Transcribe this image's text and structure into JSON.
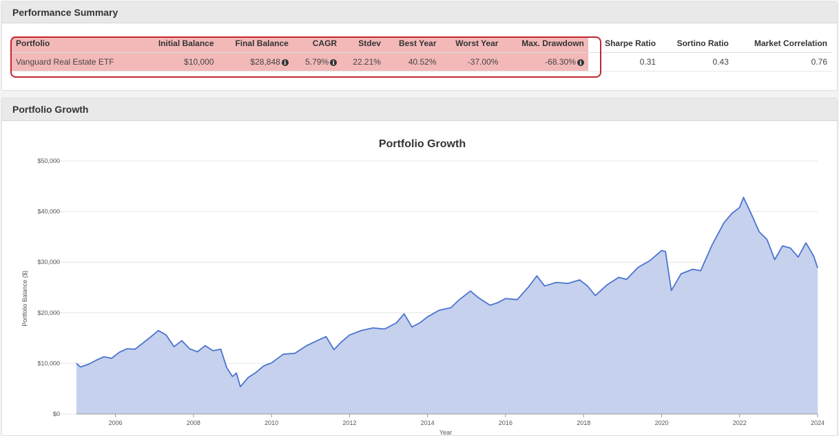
{
  "summary": {
    "title": "Performance Summary",
    "columns": [
      "Portfolio",
      "Initial Balance",
      "Final Balance",
      "CAGR",
      "Stdev",
      "Best Year",
      "Worst Year",
      "Max. Drawdown",
      "Sharpe Ratio",
      "Sortino Ratio",
      "Market Correlation"
    ],
    "row": {
      "portfolio": "Vanguard Real Estate ETF",
      "initial_balance": "$10,000",
      "final_balance": "$28,848",
      "cagr": "5.79%",
      "stdev": "22.21%",
      "best_year": "40.52%",
      "worst_year": "-37.00%",
      "max_drawdown": "-68.30%",
      "sharpe": "0.31",
      "sortino": "0.43",
      "correlation": "0.76"
    },
    "info_icon": "i",
    "highlight_color": "#c0262d"
  },
  "growth": {
    "panel_title": "Portfolio Growth"
  },
  "chart_data": {
    "type": "area",
    "title": "Portfolio Growth",
    "xlabel": "Year",
    "ylabel": "Portfolio Balance ($)",
    "ylim": [
      0,
      50000
    ],
    "xlim": [
      2005.0,
      2024.0
    ],
    "y_ticks": [
      "$0",
      "$10,000",
      "$20,000",
      "$30,000",
      "$40,000",
      "$50,000"
    ],
    "x_ticks": [
      "2006",
      "2008",
      "2010",
      "2012",
      "2014",
      "2016",
      "2018",
      "2020",
      "2022",
      "2024"
    ],
    "grid": true,
    "series": [
      {
        "name": "Vanguard Real Estate ETF",
        "color": "#4a74cf",
        "fill": "#c6d1ee",
        "x": [
          2005.0,
          2005.1,
          2005.3,
          2005.5,
          2005.7,
          2005.9,
          2006.1,
          2006.3,
          2006.5,
          2006.7,
          2006.9,
          2007.1,
          2007.3,
          2007.5,
          2007.7,
          2007.9,
          2008.1,
          2008.3,
          2008.5,
          2008.7,
          2008.85,
          2009.0,
          2009.1,
          2009.2,
          2009.4,
          2009.6,
          2009.8,
          2010.0,
          2010.3,
          2010.6,
          2010.9,
          2011.2,
          2011.4,
          2011.6,
          2011.8,
          2012.0,
          2012.3,
          2012.6,
          2012.9,
          2013.2,
          2013.4,
          2013.6,
          2013.8,
          2014.0,
          2014.3,
          2014.6,
          2014.8,
          2015.1,
          2015.3,
          2015.6,
          2015.8,
          2016.0,
          2016.3,
          2016.6,
          2016.8,
          2017.0,
          2017.3,
          2017.6,
          2017.9,
          2018.1,
          2018.3,
          2018.6,
          2018.9,
          2019.1,
          2019.4,
          2019.7,
          2020.0,
          2020.1,
          2020.25,
          2020.5,
          2020.8,
          2021.0,
          2021.3,
          2021.6,
          2021.8,
          2022.0,
          2022.1,
          2022.3,
          2022.5,
          2022.7,
          2022.9,
          2023.1,
          2023.3,
          2023.5,
          2023.7,
          2023.9,
          2024.0
        ],
        "values": [
          10000,
          9300,
          9800,
          10600,
          11300,
          11000,
          12200,
          12900,
          12800,
          14000,
          15200,
          16500,
          15600,
          13300,
          14500,
          12900,
          12300,
          13500,
          12500,
          12800,
          9200,
          7400,
          8100,
          5400,
          7200,
          8200,
          9500,
          10100,
          11800,
          12000,
          13500,
          14600,
          15300,
          12700,
          14300,
          15600,
          16500,
          17000,
          16800,
          18000,
          19800,
          17200,
          18000,
          19200,
          20500,
          21000,
          22500,
          24300,
          23000,
          21500,
          22000,
          22800,
          22600,
          25200,
          27300,
          25300,
          26000,
          25800,
          26500,
          25300,
          23400,
          25500,
          27000,
          26600,
          29000,
          30300,
          32300,
          32100,
          24400,
          27700,
          28600,
          28300,
          33500,
          37800,
          39600,
          40800,
          42800,
          39500,
          36000,
          34500,
          30500,
          33200,
          32800,
          31000,
          33800,
          31200,
          28848
        ]
      }
    ]
  }
}
